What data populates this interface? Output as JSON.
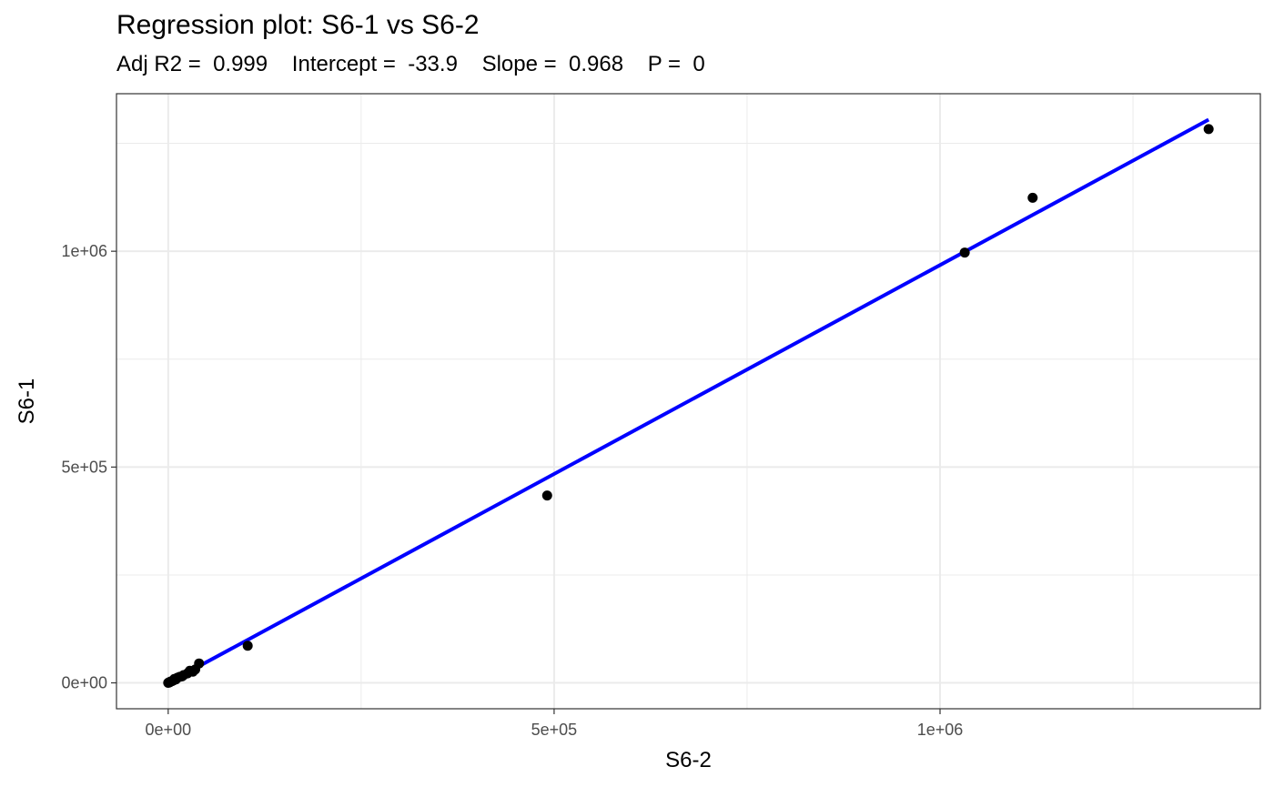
{
  "chart_data": {
    "type": "scatter",
    "title": "Regression plot: S6-1 vs S6-2",
    "subtitle": {
      "adj_r2_label": "Adj R2 = ",
      "adj_r2": "0.999",
      "intercept_label": "Intercept = ",
      "intercept": "-33.9",
      "slope_label": "Slope = ",
      "slope": "0.968",
      "p_label": "P = ",
      "p": "0"
    },
    "xlabel": "S6-2",
    "ylabel": "S6-1",
    "xlim": [
      -67000,
      1415000
    ],
    "ylim": [
      -60000,
      1365000
    ],
    "x_ticks": [
      {
        "value": 0,
        "label": "0e+00"
      },
      {
        "value": 500000,
        "label": "5e+05"
      },
      {
        "value": 1000000,
        "label": "1e+06"
      }
    ],
    "y_ticks": [
      {
        "value": 0,
        "label": "0e+00"
      },
      {
        "value": 500000,
        "label": "5e+05"
      },
      {
        "value": 1000000,
        "label": "1e+06"
      }
    ],
    "x_minor": [
      250000,
      750000,
      1250000
    ],
    "y_minor": [
      250000,
      750000,
      1250000
    ],
    "grid": true,
    "points": [
      {
        "x": 0,
        "y": 0
      },
      {
        "x": 1000,
        "y": 1000
      },
      {
        "x": 2000,
        "y": 1500
      },
      {
        "x": 3000,
        "y": 3000
      },
      {
        "x": 5000,
        "y": 4000
      },
      {
        "x": 7000,
        "y": 6000
      },
      {
        "x": 8000,
        "y": 9000
      },
      {
        "x": 10000,
        "y": 8000
      },
      {
        "x": 12000,
        "y": 12000
      },
      {
        "x": 15000,
        "y": 14000
      },
      {
        "x": 18000,
        "y": 15000
      },
      {
        "x": 20000,
        "y": 18000
      },
      {
        "x": 25000,
        "y": 22000
      },
      {
        "x": 28000,
        "y": 28000
      },
      {
        "x": 32000,
        "y": 26000
      },
      {
        "x": 35000,
        "y": 31000
      },
      {
        "x": 40000,
        "y": 45000
      },
      {
        "x": 103000,
        "y": 86000
      },
      {
        "x": 491000,
        "y": 434000
      },
      {
        "x": 1032000,
        "y": 997000
      },
      {
        "x": 1120000,
        "y": 1124000
      },
      {
        "x": 1348000,
        "y": 1283000
      }
    ],
    "regression_line": {
      "x_start": 0,
      "x_end": 1348000,
      "intercept": -33.9,
      "slope": 0.968
    },
    "colors": {
      "points": "#000000",
      "line": "#0000ff",
      "grid": "#ebebeb",
      "border": "#333333",
      "tick_text": "#4d4d4d"
    }
  }
}
